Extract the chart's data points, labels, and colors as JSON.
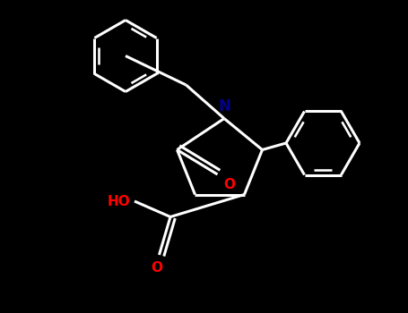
{
  "bg_color": "#000000",
  "bond_color": "#ffffff",
  "N_color": "#00008B",
  "O_color": "#FF0000",
  "line_width": 2.2,
  "figsize": [
    4.55,
    3.5
  ],
  "dpi": 100,
  "xlim": [
    0,
    9.1
  ],
  "ylim": [
    0,
    7.0
  ]
}
